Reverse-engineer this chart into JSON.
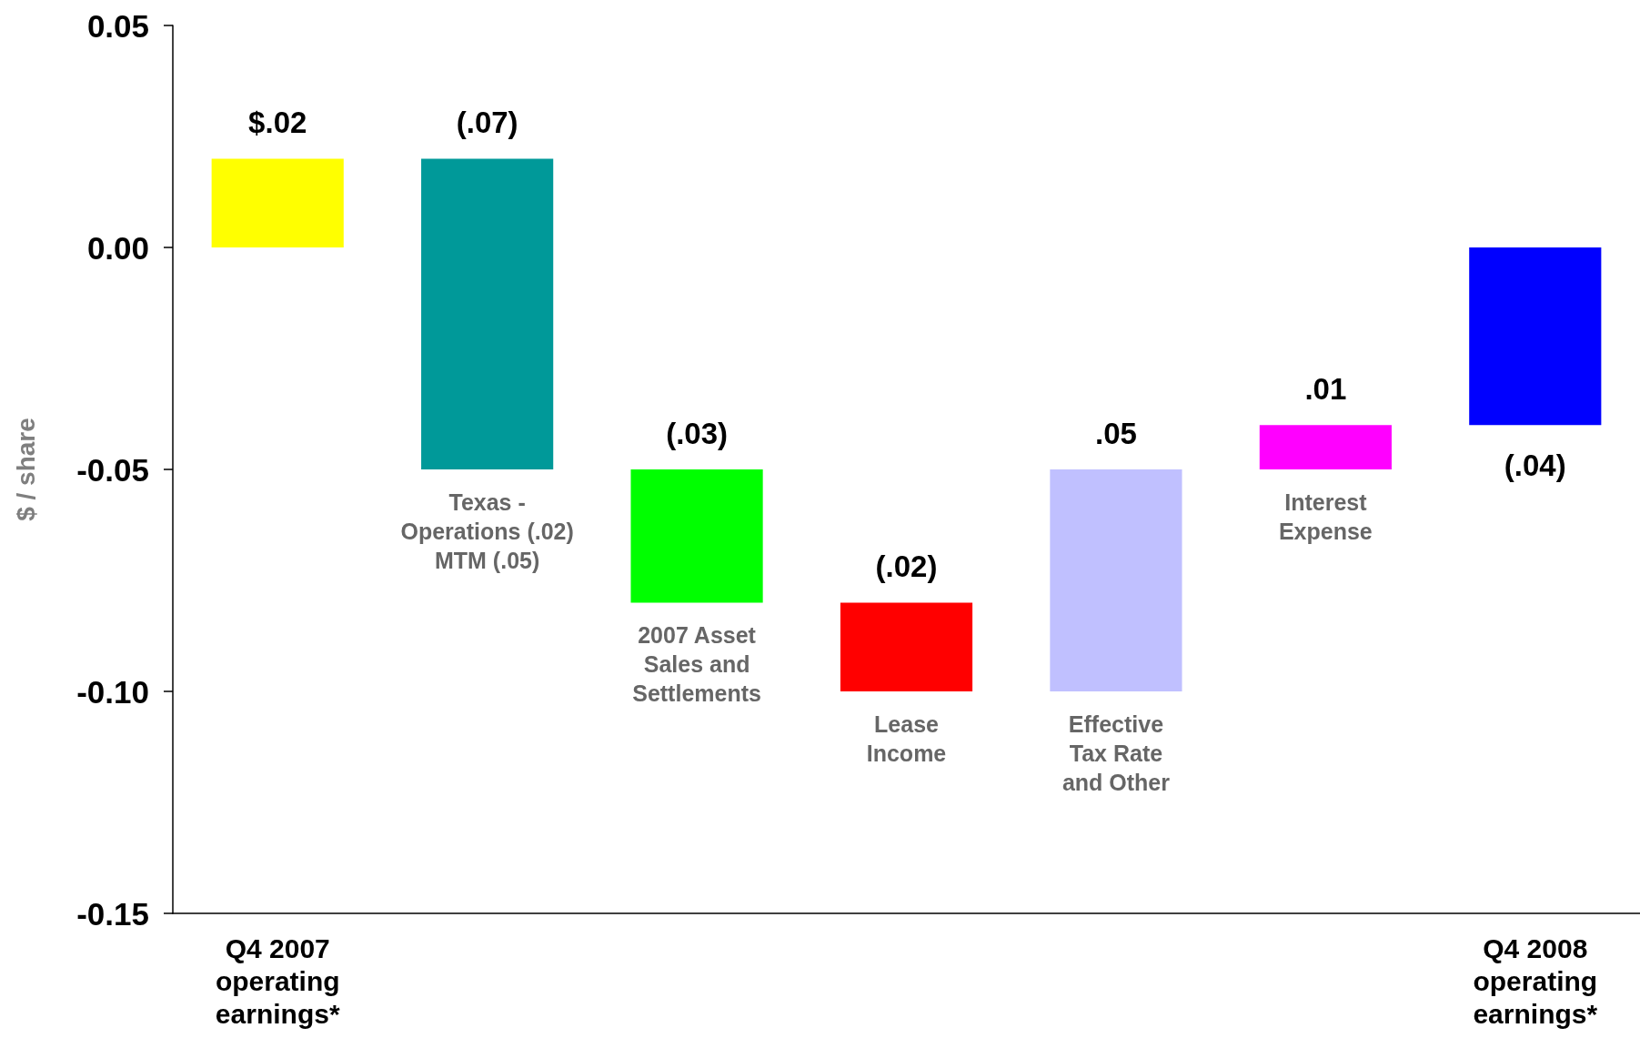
{
  "chart_data": {
    "type": "bar",
    "ylabel": "$ / share",
    "categories": [
      "Q4 2007\noperating\nearnings*",
      "Texas -\nOperations (.02)\nMTM (.05)",
      "2007 Asset\nSales and\nSettlements",
      "Lease\nIncome",
      "Effective\nTax Rate\nand Other",
      "Interest\nExpense",
      "Q4 2008\noperating\nearnings*"
    ],
    "base": [
      0,
      0.02,
      -0.05,
      -0.08,
      -0.1,
      -0.05,
      0
    ],
    "values": [
      0.02,
      -0.07,
      -0.03,
      -0.02,
      0.05,
      0.01,
      -0.04
    ],
    "colors": [
      "#ffff00",
      "#009999",
      "#00ff00",
      "#ff0000",
      "#c0c0ff",
      "#ff00ff",
      "#0000ff"
    ],
    "value_labels": [
      "$.02",
      "(.07)",
      "(.03)",
      "(.02)",
      ".05",
      ".01",
      "(.04)"
    ],
    "ylim": [
      -0.15,
      0.05
    ],
    "yticks": [
      -0.15,
      {
        "value": -0.1,
        "label": "-0.10"
      },
      -0.05,
      {
        "value": 0,
        "label": "0.00"
      },
      0.05
    ]
  }
}
